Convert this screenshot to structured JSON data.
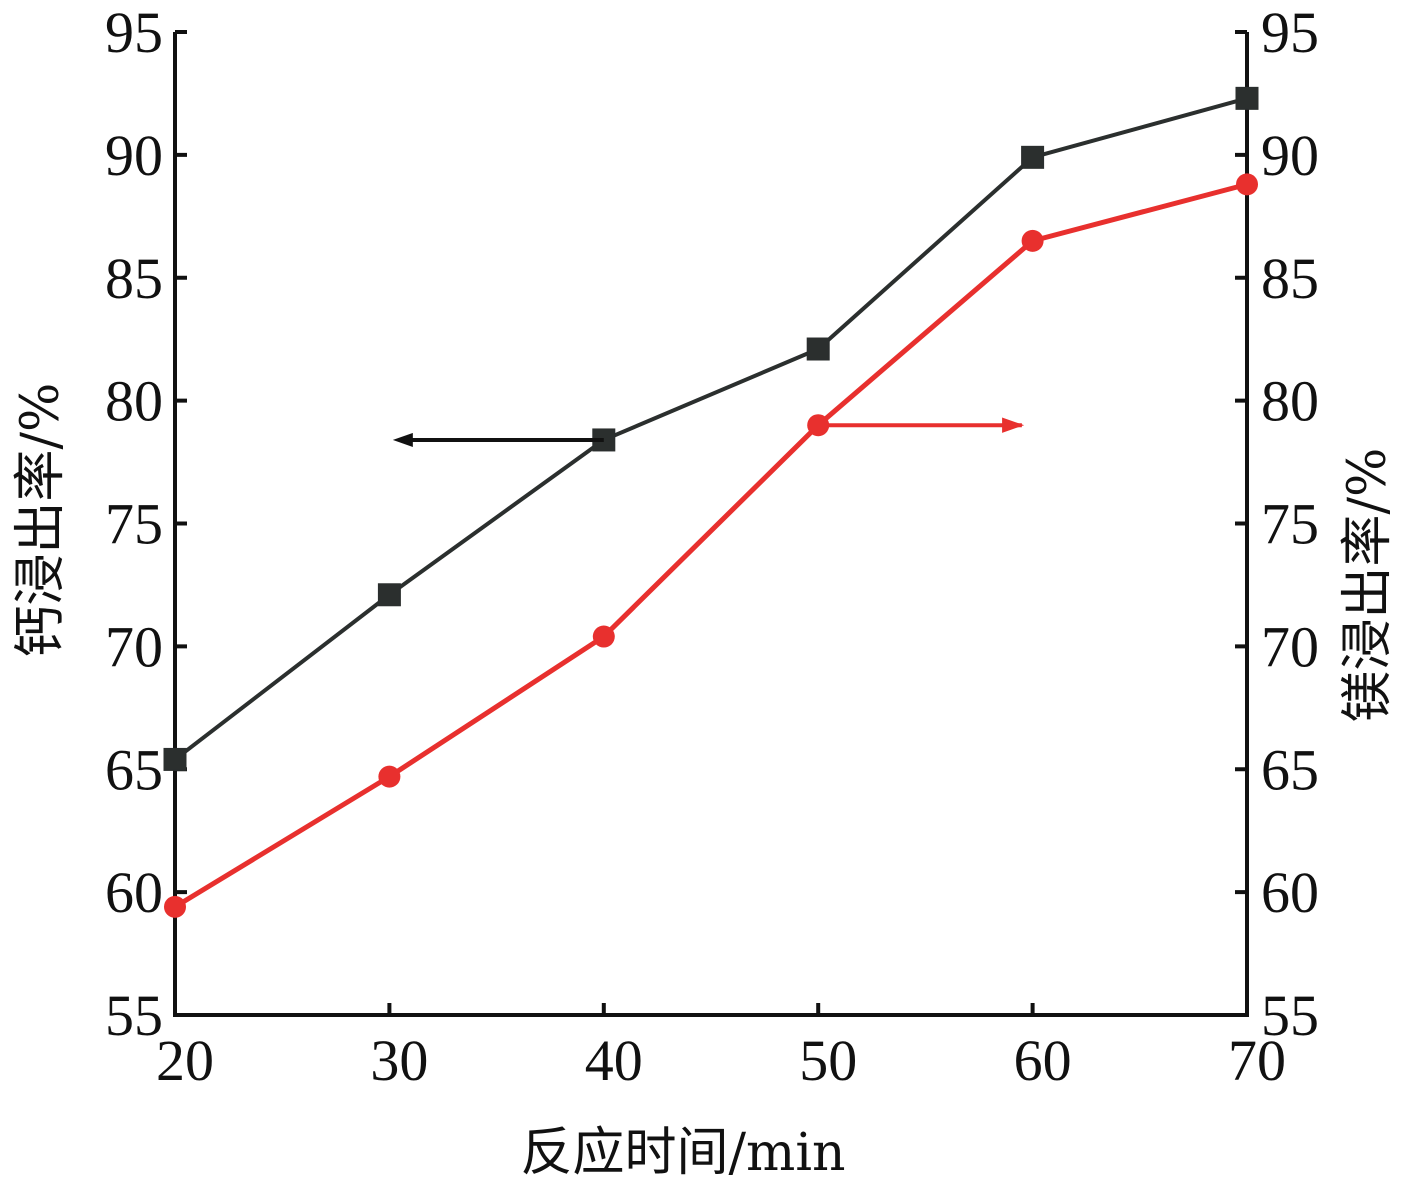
{
  "chart_data": {
    "type": "line",
    "title": "",
    "xlabel": "反应时间/min",
    "ylabel_left": "钙浸出率/%",
    "ylabel_right": "镁浸出率/%",
    "x": [
      20,
      30,
      40,
      50,
      60,
      70
    ],
    "x_ticks": [
      "20",
      "30",
      "40",
      "50",
      "60",
      "70"
    ],
    "y_ticks": [
      "55",
      "60",
      "65",
      "70",
      "75",
      "80",
      "85",
      "90",
      "95"
    ],
    "xlim": [
      20,
      70
    ],
    "ylim_left": [
      55,
      95
    ],
    "ylim_right": [
      55,
      95
    ],
    "grid": false,
    "legend": "none",
    "series": [
      {
        "axis": "left",
        "marker": "square",
        "color": "#2b2f2e",
        "values": [
          65.4,
          72.1,
          78.4,
          82.1,
          89.9,
          92.3
        ]
      },
      {
        "axis": "right",
        "marker": "circle",
        "color": "#e8302e",
        "values": [
          59.4,
          64.7,
          70.4,
          79.0,
          86.5,
          88.8
        ]
      }
    ],
    "annotations": [
      {
        "type": "arrow",
        "direction": "left",
        "color": "#111111",
        "points_to": "left-axis",
        "x_from": 40,
        "x_to": 31,
        "y": 78.4,
        "axis": "left"
      },
      {
        "type": "arrow",
        "direction": "right",
        "color": "#e8302e",
        "points_to": "right-axis",
        "x_from": 50,
        "x_to": 59.5,
        "y": 79.0,
        "axis": "right"
      }
    ]
  }
}
